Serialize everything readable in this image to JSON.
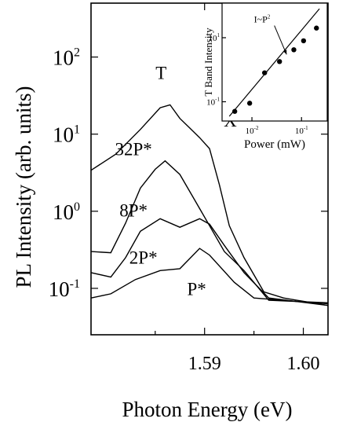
{
  "chart_data": [
    {
      "type": "line",
      "title": "",
      "xlabel": "Photon Energy (eV)",
      "ylabel": "PL Intensity (arb. units)",
      "xscale": "linear",
      "yscale": "log",
      "xlim": [
        1.5785,
        1.6025
      ],
      "ylim": [
        0.025,
        500
      ],
      "x_ticks": [
        {
          "value": 1.59,
          "label": "1.59"
        },
        {
          "value": 1.6,
          "label": "1.60"
        }
      ],
      "y_ticks": [
        {
          "value": 0.1,
          "base": "10",
          "exp": "-1"
        },
        {
          "value": 1,
          "base": "10",
          "exp": "0"
        },
        {
          "value": 10,
          "base": "10",
          "exp": "1"
        },
        {
          "value": 100,
          "base": "10",
          "exp": "2"
        }
      ],
      "series": [
        {
          "name": "32P*",
          "points": [
            [
              1.5785,
              3.4
            ],
            [
              1.581,
              5.5
            ],
            [
              1.5835,
              11.5
            ],
            [
              1.5855,
              22
            ],
            [
              1.5865,
              24
            ],
            [
              1.5875,
              16
            ],
            [
              1.5885,
              12
            ],
            [
              1.5895,
              9
            ],
            [
              1.5905,
              6.5
            ],
            [
              1.5915,
              2.2
            ],
            [
              1.5925,
              0.65
            ],
            [
              1.594,
              0.25
            ],
            [
              1.596,
              0.09
            ],
            [
              1.598,
              0.075
            ],
            [
              1.6025,
              0.06
            ]
          ]
        },
        {
          "name": "8P*",
          "points": [
            [
              1.5785,
              0.3
            ],
            [
              1.5805,
              0.29
            ],
            [
              1.582,
              0.7
            ],
            [
              1.5835,
              2.0
            ],
            [
              1.585,
              3.5
            ],
            [
              1.586,
              4.5
            ],
            [
              1.5875,
              3.0
            ],
            [
              1.589,
              1.4
            ],
            [
              1.5905,
              0.65
            ],
            [
              1.592,
              0.3
            ],
            [
              1.594,
              0.17
            ],
            [
              1.5965,
              0.07
            ],
            [
              1.6025,
              0.065
            ]
          ]
        },
        {
          "name": "2P*",
          "points": [
            [
              1.5785,
              0.16
            ],
            [
              1.5805,
              0.14
            ],
            [
              1.582,
              0.25
            ],
            [
              1.5835,
              0.55
            ],
            [
              1.5855,
              0.8
            ],
            [
              1.5875,
              0.62
            ],
            [
              1.5895,
              0.8
            ],
            [
              1.5905,
              0.68
            ],
            [
              1.592,
              0.36
            ],
            [
              1.594,
              0.16
            ],
            [
              1.5965,
              0.075
            ],
            [
              1.6025,
              0.06
            ]
          ]
        },
        {
          "name": "P*",
          "points": [
            [
              1.5785,
              0.075
            ],
            [
              1.5805,
              0.085
            ],
            [
              1.583,
              0.13
            ],
            [
              1.5855,
              0.17
            ],
            [
              1.5875,
              0.18
            ],
            [
              1.5895,
              0.33
            ],
            [
              1.5905,
              0.27
            ],
            [
              1.593,
              0.12
            ],
            [
              1.595,
              0.075
            ],
            [
              1.6025,
              0.063
            ]
          ]
        }
      ],
      "annotations": [
        {
          "text": "T",
          "x": 1.5856,
          "y": 52
        },
        {
          "text": "X",
          "x": 1.5926,
          "y": 12.5
        },
        {
          "text": "32P*",
          "x": 1.5828,
          "y": 5.3
        },
        {
          "text": "8P*",
          "x": 1.5828,
          "y": 0.85
        },
        {
          "text": "2P*",
          "x": 1.5838,
          "y": 0.21
        },
        {
          "text": "P*",
          "x": 1.5892,
          "y": 0.082
        }
      ]
    },
    {
      "type": "scatter",
      "title": "",
      "xlabel": "Power (mW)",
      "ylabel": "T Band Intensity",
      "xscale": "log",
      "yscale": "log",
      "xlim": [
        0.0025,
        0.33
      ],
      "ylim": [
        0.025,
        120
      ],
      "x_ticks": [
        {
          "value": 0.01,
          "base": "10",
          "exp": "-2"
        },
        {
          "value": 0.1,
          "base": "10",
          "exp": "-1"
        }
      ],
      "y_ticks": [
        {
          "value": 0.1,
          "base": "10",
          "exp": "-1"
        },
        {
          "value": 10,
          "base": "10",
          "exp": "1"
        }
      ],
      "series": [
        {
          "name": "T band",
          "points": [
            [
              0.0045,
              0.05
            ],
            [
              0.009,
              0.09
            ],
            [
              0.018,
              0.8
            ],
            [
              0.036,
              1.8
            ],
            [
              0.07,
              4.2
            ],
            [
              0.11,
              8
            ],
            [
              0.2,
              20
            ]
          ]
        }
      ],
      "fit_line": {
        "points": [
          [
            0.0035,
            0.035
          ],
          [
            0.23,
            80
          ]
        ]
      },
      "annotations": [
        {
          "text": "I~P",
          "sup": "2",
          "x": 0.011,
          "y": 30,
          "arrow_to": [
            0.05,
            3.0
          ]
        }
      ]
    }
  ]
}
